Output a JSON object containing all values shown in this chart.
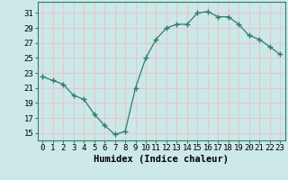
{
  "x": [
    0,
    1,
    2,
    3,
    4,
    5,
    6,
    7,
    8,
    9,
    10,
    11,
    12,
    13,
    14,
    15,
    16,
    17,
    18,
    19,
    20,
    21,
    22,
    23
  ],
  "y": [
    22.5,
    22.0,
    21.5,
    20.0,
    19.5,
    17.5,
    16.0,
    14.8,
    15.2,
    21.0,
    25.0,
    27.5,
    29.0,
    29.5,
    29.5,
    31.0,
    31.2,
    30.5,
    30.5,
    29.5,
    28.0,
    27.5,
    26.5,
    25.5
  ],
  "xlabel": "Humidex (Indice chaleur)",
  "ylabel_ticks": [
    15,
    17,
    19,
    21,
    23,
    25,
    27,
    29,
    31
  ],
  "xtick_labels": [
    "0",
    "1",
    "2",
    "3",
    "4",
    "5",
    "6",
    "7",
    "8",
    "9",
    "10",
    "11",
    "12",
    "13",
    "14",
    "15",
    "16",
    "17",
    "18",
    "19",
    "20",
    "21",
    "22",
    "23"
  ],
  "line_color": "#2e7d6e",
  "marker": "+",
  "bg_color": "#cce8e8",
  "grid_color": "#e8c8c8",
  "xlim": [
    -0.5,
    23.5
  ],
  "ylim": [
    14,
    32.5
  ],
  "tick_fontsize": 6.5,
  "xlabel_fontsize": 7.5
}
